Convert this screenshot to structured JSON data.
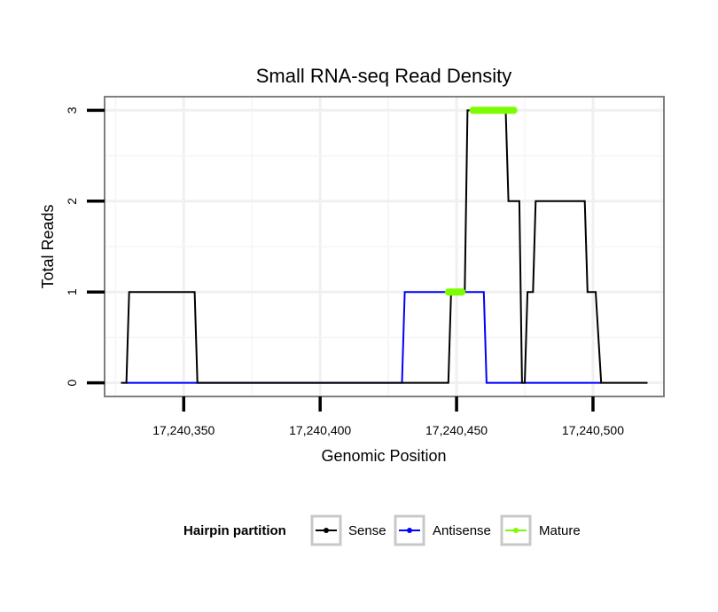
{
  "chart_data": {
    "type": "line",
    "title": "Small RNA-seq Read Density",
    "xlabel": "Genomic Position",
    "ylabel": "Total Reads",
    "xlim": [
      17240321,
      17240526
    ],
    "ylim": [
      -0.15,
      3.15
    ],
    "x_ticks": [
      17240350,
      17240400,
      17240450,
      17240500
    ],
    "x_tick_labels": [
      "17,240,350",
      "17,240,400",
      "17,240,450",
      "17,240,500"
    ],
    "y_ticks": [
      0,
      1,
      2,
      3
    ],
    "y_tick_labels": [
      "0",
      "1",
      "2",
      "3"
    ],
    "legend": {
      "title": "Hairpin partition",
      "position": "bottom",
      "entries": [
        "Sense",
        "Antisense",
        "Mature"
      ]
    },
    "series": [
      {
        "name": "Sense",
        "color": "#000000",
        "x": [
          17240327,
          17240329,
          17240330,
          17240354,
          17240355,
          17240447,
          17240448,
          17240449,
          17240453,
          17240454,
          17240468,
          17240469,
          17240473,
          17240474,
          17240475,
          17240476,
          17240478,
          17240479,
          17240480,
          17240481,
          17240497,
          17240498,
          17240500,
          17240501,
          17240503,
          17240504,
          17240520
        ],
        "y": [
          0,
          0,
          1,
          1,
          0,
          0,
          1,
          1,
          1,
          3,
          3,
          2,
          2,
          0,
          0,
          1,
          1,
          2,
          2,
          2,
          2,
          1,
          1,
          1,
          0,
          0,
          0
        ]
      },
      {
        "name": "Antisense",
        "color": "#0000ff",
        "x": [
          17240329,
          17240430,
          17240431,
          17240440,
          17240445,
          17240460,
          17240461,
          17240503
        ],
        "y": [
          0,
          0,
          1,
          1,
          1,
          1,
          0,
          0
        ]
      },
      {
        "name": "Mature",
        "color": "#7cfc00",
        "segments": [
          {
            "x": [
              17240447,
              17240452
            ],
            "y": [
              1,
              1
            ]
          },
          {
            "x": [
              17240456,
              17240471
            ],
            "y": [
              3,
              3
            ]
          }
        ]
      }
    ]
  }
}
